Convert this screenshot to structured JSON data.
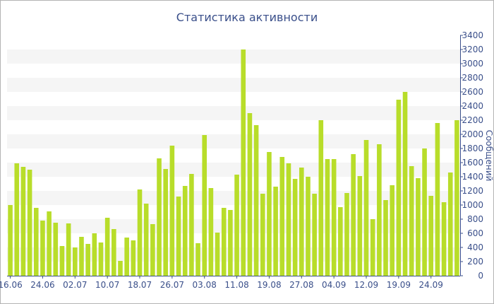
{
  "chart_data": {
    "type": "bar",
    "title": "Статистика активности",
    "ylabel": "Сообщений",
    "ylim": [
      0,
      3400
    ],
    "y_ticks": [
      0,
      200,
      400,
      600,
      800,
      1000,
      1200,
      1400,
      1600,
      1800,
      2000,
      2200,
      2400,
      2600,
      2800,
      3000,
      3200,
      3400
    ],
    "y_axis_position": "right",
    "grid": "alternating horizontal bands",
    "bar_color": "#b8dd2a",
    "band_color": "#f5f5f5",
    "text_color": "#3a4f8a",
    "x_tick_labels": [
      {
        "label": "16.06",
        "index": 0
      },
      {
        "label": "24.06",
        "index": 5
      },
      {
        "label": "02.07",
        "index": 10
      },
      {
        "label": "10.07",
        "index": 15
      },
      {
        "label": "18.07",
        "index": 20
      },
      {
        "label": "26.07",
        "index": 25
      },
      {
        "label": "03.08",
        "index": 30
      },
      {
        "label": "11.08",
        "index": 35
      },
      {
        "label": "19.08",
        "index": 40
      },
      {
        "label": "27.08",
        "index": 45
      },
      {
        "label": "04.09",
        "index": 50
      },
      {
        "label": "12.09",
        "index": 55
      },
      {
        "label": "19.09",
        "index": 60
      },
      {
        "label": "24.09",
        "index": 65
      }
    ],
    "values": [
      1000,
      1590,
      1540,
      1500,
      960,
      780,
      910,
      750,
      420,
      740,
      400,
      550,
      450,
      600,
      470,
      820,
      660,
      210,
      540,
      500,
      1220,
      1020,
      730,
      1660,
      1510,
      1840,
      1120,
      1270,
      1440,
      460,
      1990,
      1240,
      610,
      960,
      930,
      1430,
      3200,
      2300,
      2130,
      1160,
      1750,
      1260,
      1680,
      1590,
      1370,
      1530,
      1400,
      1160,
      2200,
      1650,
      1650,
      970,
      1170,
      1720,
      1410,
      1920,
      800,
      1860,
      1070,
      1280,
      2490,
      2600,
      1550,
      1380,
      1800,
      1130,
      2160,
      1040,
      1460,
      2200
    ]
  }
}
